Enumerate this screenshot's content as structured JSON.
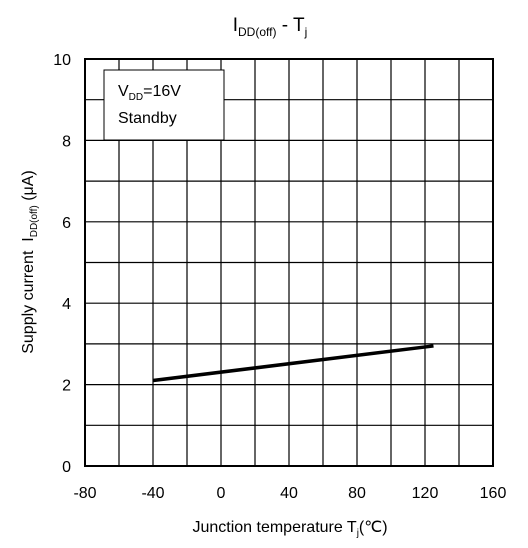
{
  "chart_data": {
    "type": "line",
    "title": {
      "main": "I",
      "main_sub": "DD(off)",
      "sep": " - T",
      "sep_sub": "j"
    },
    "xlabel": {
      "main": "Junction temperature T",
      "sub": "j",
      "tail": "(℃)"
    },
    "ylabel": {
      "main": "Supply current  I",
      "sub": "DD(off)",
      "tail": " (μA)"
    },
    "xlim": [
      -80,
      160
    ],
    "ylim": [
      0,
      10
    ],
    "xticks": [
      -80,
      -40,
      0,
      40,
      80,
      120,
      160
    ],
    "xtick_labels": [
      "-80",
      "-40",
      "0",
      "40",
      "80",
      "120",
      "160"
    ],
    "yticks": [
      0,
      2,
      4,
      6,
      8,
      10
    ],
    "ytick_labels": [
      "0",
      "2",
      "4",
      "6",
      "8",
      "10"
    ],
    "x_grid_step": 20,
    "y_grid_step": 1,
    "grid": true,
    "annotation": {
      "line1_main": "V",
      "line1_sub": "DD",
      "line1_tail": "=16V",
      "line2": "Standby",
      "placement": "top-left"
    },
    "series": [
      {
        "x": [
          -40,
          125
        ],
        "y": [
          2.1,
          2.95
        ],
        "color": "#000000"
      }
    ]
  }
}
